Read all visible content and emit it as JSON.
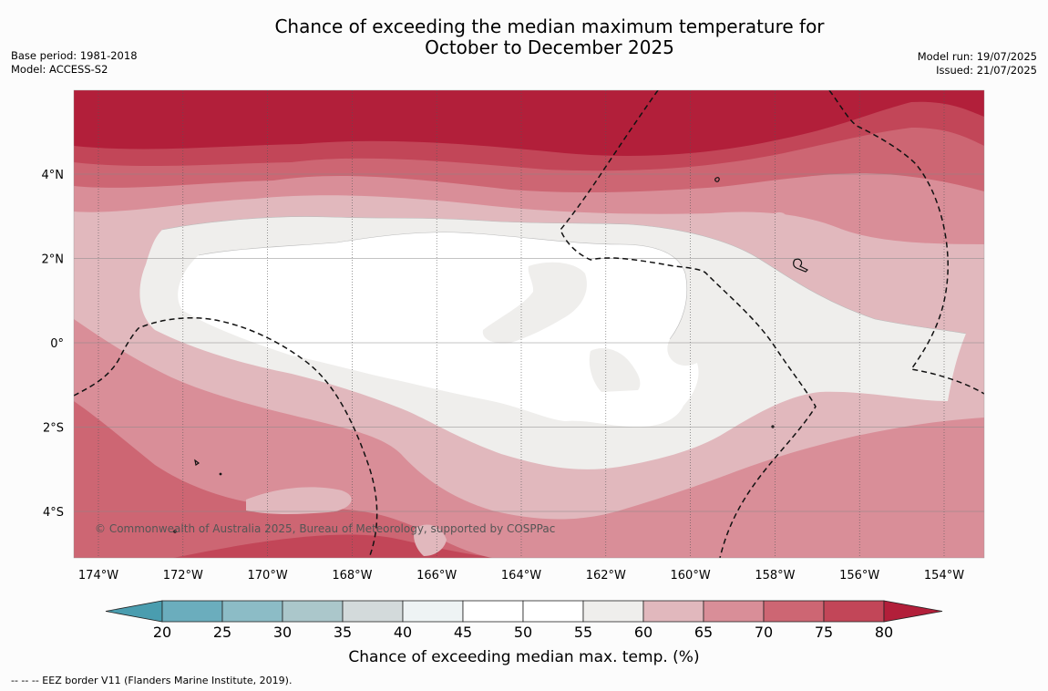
{
  "header": {
    "title_line1": "Chance of exceeding the median maximum temperature for",
    "title_line2": "October to December 2025",
    "base_period": "Base period: 1981-2018",
    "model": "Model: ACCESS-S2",
    "model_run": "Model run: 19/07/2025",
    "issued": "Issued: 21/07/2025"
  },
  "map": {
    "lat_labels": [
      "4°N",
      "2°N",
      "0°",
      "2°S",
      "4°S"
    ],
    "lon_labels": [
      "174°W",
      "172°W",
      "170°W",
      "168°W",
      "166°W",
      "164°W",
      "162°W",
      "160°W",
      "158°W",
      "156°W",
      "154°W"
    ],
    "copyright": "© Commonwealth of Australia 2025, Bureau of Meteorology, supported by COSPPac",
    "colors": {
      "p80": "#b21f3a",
      "p75": "#c24658",
      "p70": "#cd6673",
      "p65": "#d98e98",
      "p60": "#e1b8bd",
      "p55": "#efeeec",
      "p50": "#ffffff"
    }
  },
  "colorbar": {
    "ticks": [
      "20",
      "25",
      "30",
      "35",
      "40",
      "45",
      "50",
      "55",
      "60",
      "65",
      "70",
      "75",
      "80"
    ],
    "colors": [
      "#4a9daf",
      "#6badbd",
      "#8cbcc6",
      "#abc7cb",
      "#d3dadb",
      "#eef3f4",
      "#ffffff",
      "#ffffff",
      "#efeeec",
      "#e1b8bd",
      "#d98e98",
      "#cd6673",
      "#c24658",
      "#b21f3a"
    ],
    "title": "Chance of exceeding median max. temp. (%)"
  },
  "footer": {
    "legend_text": "--  --  -- EEZ border V11 (Flanders Marine Institute, 2019)."
  }
}
